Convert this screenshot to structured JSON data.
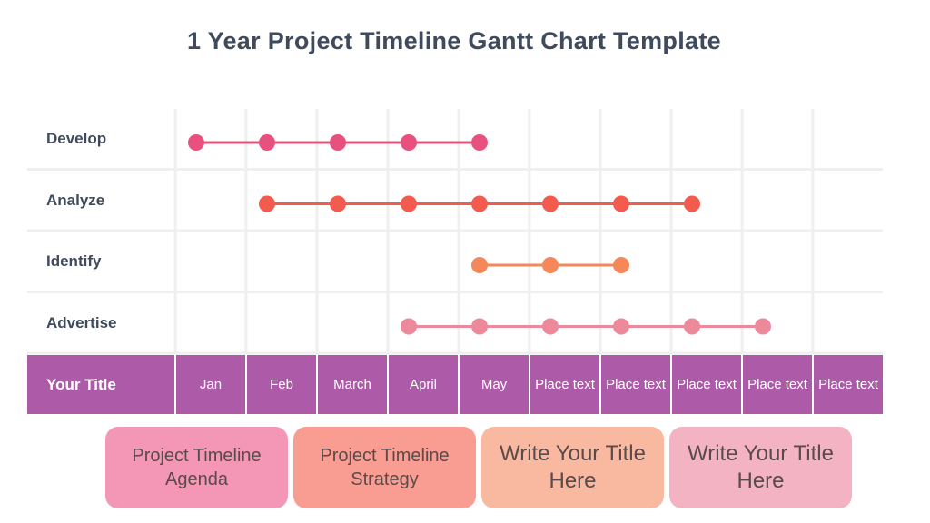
{
  "title": "1 Year Project Timeline Gantt Chart Template",
  "chart_data": {
    "type": "gantt",
    "title": "1 Year Project Timeline Gantt Chart Template",
    "header_label": "Your Title",
    "categories": [
      "Jan",
      "Feb",
      "March",
      "April",
      "May",
      "Place text",
      "Place text",
      "Place text",
      "Place text",
      "Place text"
    ],
    "series": [
      {
        "name": "Develop",
        "start": 0,
        "end": 4,
        "color": "#e8507e"
      },
      {
        "name": "Analyze",
        "start": 1,
        "end": 7,
        "color": "#f45b4f"
      },
      {
        "name": "Identify",
        "start": 4,
        "end": 6,
        "color": "#f5875a"
      },
      {
        "name": "Advertise",
        "start": 3,
        "end": 8,
        "color": "#ec8a9c"
      }
    ],
    "grid": true
  },
  "colors": {
    "header": "#ad5aa8",
    "grid": "#efefef",
    "text": "#3f4a5c"
  },
  "boxes": [
    {
      "text": "Project Timeline Agenda",
      "color": "#f497b6"
    },
    {
      "text": "Project Timeline Strategy",
      "color": "#f99c92"
    },
    {
      "text": "Write Your Title Here",
      "color": "#f9b8a0"
    },
    {
      "text": "Write Your Title Here",
      "color": "#f4b3c2"
    }
  ]
}
